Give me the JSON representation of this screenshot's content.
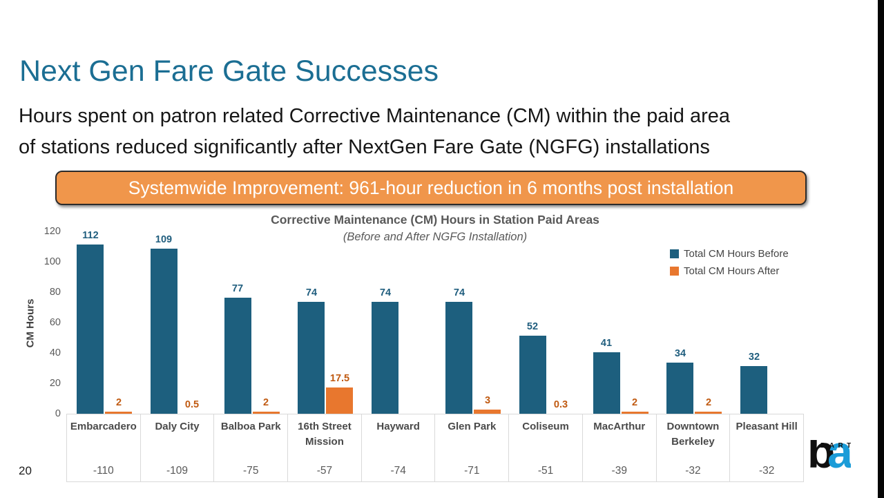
{
  "page": {
    "number": "20"
  },
  "title": "Next Gen Fare Gate Successes",
  "subtitle": {
    "line1": "Hours spent on patron related Corrective Maintenance (CM) within the paid area",
    "line2": "of stations reduced significantly after NextGen Fare Gate (NGFG) installations"
  },
  "banner": {
    "text": "Systemwide Improvement: 961-hour reduction in 6 months post installation",
    "fill": "#F0964B",
    "border": "#2b2b2b",
    "text_color": "#FFFFFF"
  },
  "colors": {
    "title": "#1B6E93",
    "bar_before": "#1D5F7E",
    "bar_after": "#E8772E",
    "label_before": "#205E7E",
    "label_after": "#C05A11",
    "chart_text": "#595959",
    "table_border": "#D9D9D9"
  },
  "logo": {
    "brand": "BART",
    "letter_b": "b",
    "letter_a": "a"
  },
  "chart_data": {
    "type": "bar",
    "title": "Corrective Maintenance (CM) Hours in Station Paid Areas",
    "subtitle": "(Before and After NGFG Installation)",
    "ylabel": "CM Hours",
    "xlabel": "",
    "ylim": [
      0,
      120
    ],
    "y_ticks": [
      0,
      20,
      40,
      60,
      80,
      100,
      120
    ],
    "grid": false,
    "legend_position": "top-right",
    "categories": [
      "Embarcadero",
      "Daly City",
      "Balboa Park",
      "16th Street Mission",
      "Hayward",
      "Glen Park",
      "Coliseum",
      "MacArthur",
      "Downtown Berkeley",
      "Pleasant Hill"
    ],
    "series": [
      {
        "name": "Total CM Hours Before",
        "color": "#1D5F7E",
        "values": [
          112,
          109,
          77,
          74,
          74,
          74,
          52,
          41,
          34,
          32
        ],
        "labels": [
          "112",
          "109",
          "77",
          "74",
          "74",
          "74",
          "52",
          "41",
          "34",
          "32"
        ]
      },
      {
        "name": "Total CM Hours After",
        "color": "#E8772E",
        "values": [
          2,
          0.5,
          2,
          17.5,
          0,
          3,
          0.3,
          2,
          2,
          0
        ],
        "labels": [
          "2",
          "0.5",
          "2",
          "17.5",
          "",
          "3",
          "0.3",
          "2",
          "2",
          ""
        ]
      }
    ],
    "delta_row": [
      "-110",
      "-109",
      "-75",
      "-57",
      "-74",
      "-71",
      "-51",
      "-39",
      "-32",
      "-32"
    ]
  }
}
